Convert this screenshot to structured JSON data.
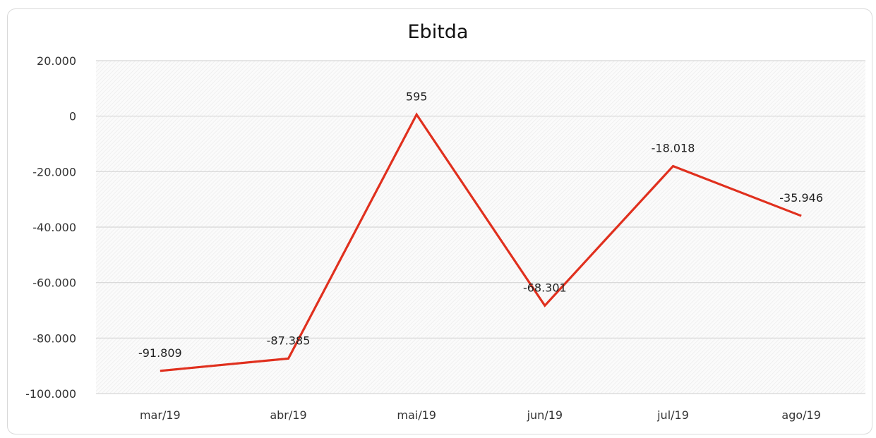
{
  "chart_data": {
    "type": "line",
    "title": "Ebitda",
    "xlabel": "",
    "ylabel": "",
    "categories": [
      "mar/19",
      "abr/19",
      "mai/19",
      "jun/19",
      "jul/19",
      "ago/19"
    ],
    "series": [
      {
        "values": [
          -91809,
          -87385,
          595,
          -68301,
          -18018,
          -35946
        ],
        "labels": [
          "-91.809",
          "-87.385",
          "595",
          "-68.301",
          "-18.018",
          "-35.946"
        ],
        "color": "#e0301e"
      }
    ],
    "ylim": [
      -100000,
      20000
    ],
    "yticks": [
      20000,
      0,
      -20000,
      -40000,
      -60000,
      -80000,
      -100000
    ],
    "ytick_labels": [
      "20.000",
      "0",
      "-20.000",
      "-40.000",
      "-60.000",
      "-80.000",
      "-100.000"
    ],
    "grid": true,
    "legend": "none"
  }
}
